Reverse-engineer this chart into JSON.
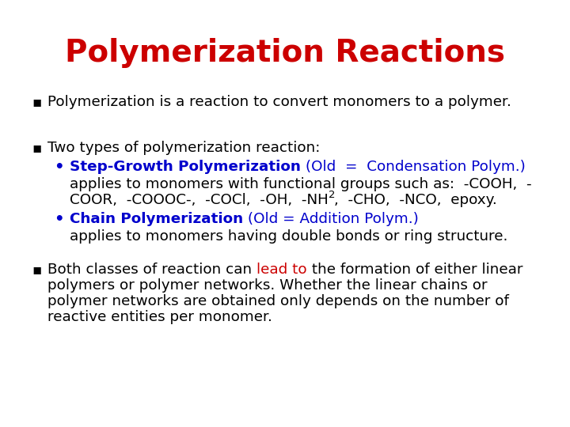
{
  "title": "Polymerization Reactions",
  "title_color": "#CC0000",
  "title_fontsize": 28,
  "body_fontsize": 13.2,
  "body_font": "Times New Roman",
  "blue_color": "#0000CC",
  "red_color": "#CC0000",
  "black_color": "#000000",
  "background_color": "#FFFFFF",
  "fig_width": 7.2,
  "fig_height": 5.4,
  "dpi": 100
}
